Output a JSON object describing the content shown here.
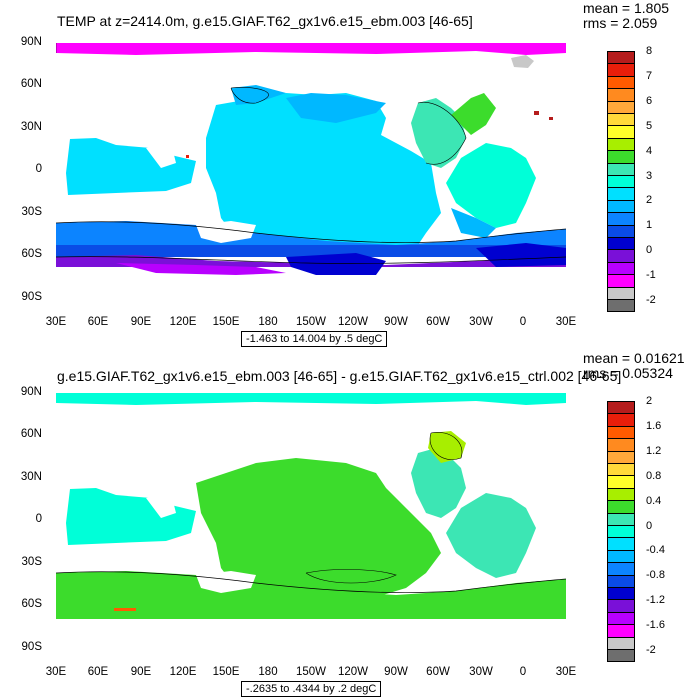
{
  "panels": [
    {
      "title": "TEMP at z=2414.0m, g.e15.GIAF.T62_gx1v6.e15_ebm.003 [46-65]",
      "mean": "mean = 1.805",
      "rms": "rms = 2.059",
      "range_note": "-1.463 to 14.004 by .5 degC",
      "lat_labels": [
        "90N",
        "60N",
        "30N",
        "0",
        "30S",
        "60S",
        "90S"
      ],
      "lon_labels": [
        "30E",
        "60E",
        "90E",
        "120E",
        "150E",
        "180",
        "150W",
        "120W",
        "90W",
        "60W",
        "30W",
        "0",
        "30E"
      ],
      "colorbar": {
        "labels": [
          "8",
          "7",
          "6",
          "5",
          "4",
          "3",
          "2",
          "1",
          "0",
          "-1",
          "-2"
        ],
        "colors": [
          "#b51c1c",
          "#e81e0a",
          "#ff5a00",
          "#ff8a1f",
          "#ffa83a",
          "#ffd93a",
          "#ffff2a",
          "#a8ee00",
          "#3cdc2c",
          "#3ce6b4",
          "#00ffd8",
          "#00e0ff",
          "#00b8ff",
          "#0c84ff",
          "#0a4ce6",
          "#0000d0",
          "#7a10d8",
          "#b800ff",
          "#ff00ff",
          "#c8c8c8",
          "#6e6e6e"
        ]
      }
    },
    {
      "title": "g.e15.GIAF.T62_gx1v6.e15_ebm.003 [46-65] - g.e15.GIAF.T62_gx1v6.e15_ctrl.002 [46-65]",
      "mean": "mean = 0.01621",
      "rms": "rms = 0.05324",
      "range_note": "-.2635 to .4344 by .2 degC",
      "lat_labels": [
        "90N",
        "60N",
        "30N",
        "0",
        "30S",
        "60S",
        "90S"
      ],
      "lon_labels": [
        "30E",
        "60E",
        "90E",
        "120E",
        "150E",
        "180",
        "150W",
        "120W",
        "90W",
        "60W",
        "30W",
        "0",
        "30E"
      ],
      "colorbar": {
        "labels": [
          "2",
          "1.6",
          "1.2",
          "0.8",
          "0.4",
          "0",
          "-0.4",
          "-0.8",
          "-1.2",
          "-1.6",
          "-2"
        ],
        "colors": [
          "#b51c1c",
          "#e81e0a",
          "#ff5a00",
          "#ff8a1f",
          "#ffa83a",
          "#ffd93a",
          "#ffff2a",
          "#a8ee00",
          "#3cdc2c",
          "#3ce6b4",
          "#00ffd8",
          "#00e0ff",
          "#00b8ff",
          "#0c84ff",
          "#0a4ce6",
          "#0000d0",
          "#7a10d8",
          "#b800ff",
          "#ff00ff",
          "#c8c8c8",
          "#6e6e6e"
        ]
      }
    }
  ]
}
